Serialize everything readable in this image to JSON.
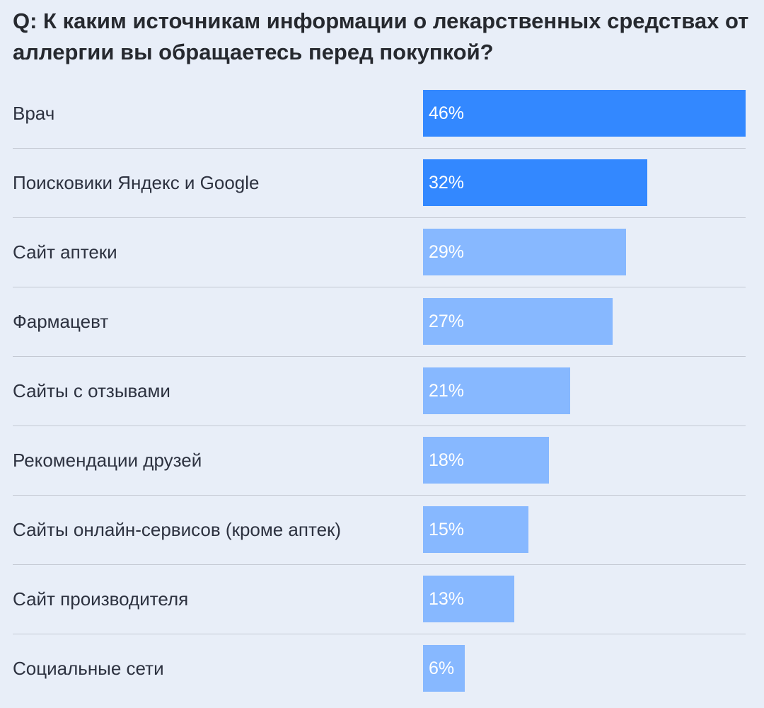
{
  "chart_data": {
    "type": "bar",
    "orientation": "horizontal",
    "title": "Q: К каким источникам информации о лекарственных средствах от аллергии вы обращаетесь перед покупкой?",
    "categories": [
      "Врач",
      "Поисковики Яндекс и Google",
      "Сайт аптеки",
      "Фармацевт",
      "Сайты с отзывами",
      "Рекомендации друзей",
      "Сайты онлайн-сервисов (кроме аптек)",
      "Сайт производителя",
      "Социальные сети"
    ],
    "values": [
      46,
      32,
      29,
      27,
      21,
      18,
      15,
      13,
      6
    ],
    "value_labels": [
      "46%",
      "32%",
      "29%",
      "27%",
      "21%",
      "18%",
      "15%",
      "13%",
      "6%"
    ],
    "xlim": [
      0,
      46
    ],
    "unit": "%",
    "grid": false,
    "legend": "none",
    "colors": {
      "highlight": "#3388ff",
      "default": "#87b8ff",
      "background": "#e8eef8",
      "divider": "#c4c9d3"
    },
    "highlight_count": 2
  }
}
